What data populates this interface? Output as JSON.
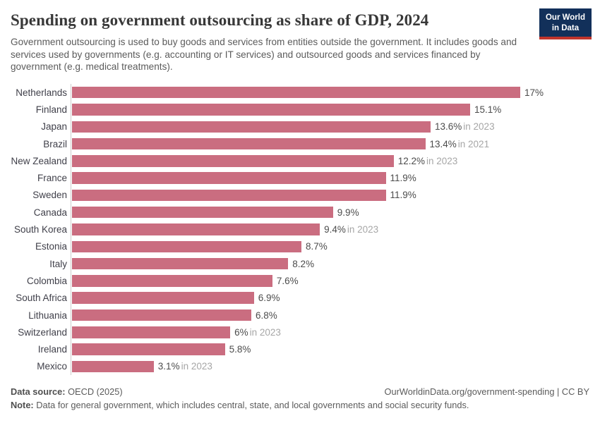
{
  "header": {
    "title": "Spending on government outsourcing as share of GDP, 2024",
    "subtitle": "Government outsourcing is used to buy goods and services from entities outside the government. It includes goods and services used by governments (e.g. accounting or IT services) and outsourced goods and services financed by government (e.g. medical treatments).",
    "logo_line1": "Our World",
    "logo_line2": "in Data"
  },
  "chart_data": {
    "type": "bar",
    "orientation": "horizontal",
    "title": "Spending on government outsourcing as share of GDP, 2024",
    "unit": "% of GDP",
    "xlim": [
      0,
      17
    ],
    "grid": false,
    "legend": "none",
    "bar_color": "#ca6d80",
    "categories": [
      "Netherlands",
      "Finland",
      "Japan",
      "Brazil",
      "New Zealand",
      "France",
      "Sweden",
      "Canada",
      "South Korea",
      "Estonia",
      "Italy",
      "Colombia",
      "South Africa",
      "Lithuania",
      "Switzerland",
      "Ireland",
      "Mexico"
    ],
    "values": [
      17,
      15.1,
      13.6,
      13.4,
      12.2,
      11.9,
      11.9,
      9.9,
      9.4,
      8.7,
      8.2,
      7.6,
      6.9,
      6.8,
      6,
      5.8,
      3.1
    ],
    "rows": [
      {
        "country": "Netherlands",
        "value": 17,
        "value_label": "17%",
        "year_note": ""
      },
      {
        "country": "Finland",
        "value": 15.1,
        "value_label": "15.1%",
        "year_note": ""
      },
      {
        "country": "Japan",
        "value": 13.6,
        "value_label": "13.6%",
        "year_note": "in 2023"
      },
      {
        "country": "Brazil",
        "value": 13.4,
        "value_label": "13.4%",
        "year_note": "in 2021"
      },
      {
        "country": "New Zealand",
        "value": 12.2,
        "value_label": "12.2%",
        "year_note": "in 2023"
      },
      {
        "country": "France",
        "value": 11.9,
        "value_label": "11.9%",
        "year_note": ""
      },
      {
        "country": "Sweden",
        "value": 11.9,
        "value_label": "11.9%",
        "year_note": ""
      },
      {
        "country": "Canada",
        "value": 9.9,
        "value_label": "9.9%",
        "year_note": ""
      },
      {
        "country": "South Korea",
        "value": 9.4,
        "value_label": "9.4%",
        "year_note": "in 2023"
      },
      {
        "country": "Estonia",
        "value": 8.7,
        "value_label": "8.7%",
        "year_note": ""
      },
      {
        "country": "Italy",
        "value": 8.2,
        "value_label": "8.2%",
        "year_note": ""
      },
      {
        "country": "Colombia",
        "value": 7.6,
        "value_label": "7.6%",
        "year_note": ""
      },
      {
        "country": "South Africa",
        "value": 6.9,
        "value_label": "6.9%",
        "year_note": ""
      },
      {
        "country": "Lithuania",
        "value": 6.8,
        "value_label": "6.8%",
        "year_note": ""
      },
      {
        "country": "Switzerland",
        "value": 6,
        "value_label": "6%",
        "year_note": "in 2023"
      },
      {
        "country": "Ireland",
        "value": 5.8,
        "value_label": "5.8%",
        "year_note": ""
      },
      {
        "country": "Mexico",
        "value": 3.1,
        "value_label": "3.1%",
        "year_note": "in 2023"
      }
    ]
  },
  "colors": {
    "bar": "#ca6d80",
    "axis_line": "#cccccc",
    "title_text": "#383838",
    "subtitle_text": "#5b5b5b",
    "value_text": "#4c4c4c",
    "year_note_text": "#a6a6a6",
    "logo_bg": "#12305a",
    "logo_accent": "#c0352c"
  },
  "footer": {
    "source_label": "Data source:",
    "source_value": "OECD (2025)",
    "credit": "OurWorldinData.org/government-spending | CC BY",
    "note_label": "Note:",
    "note_value": "Data for general government, which includes central, state, and local governments and social security funds."
  }
}
